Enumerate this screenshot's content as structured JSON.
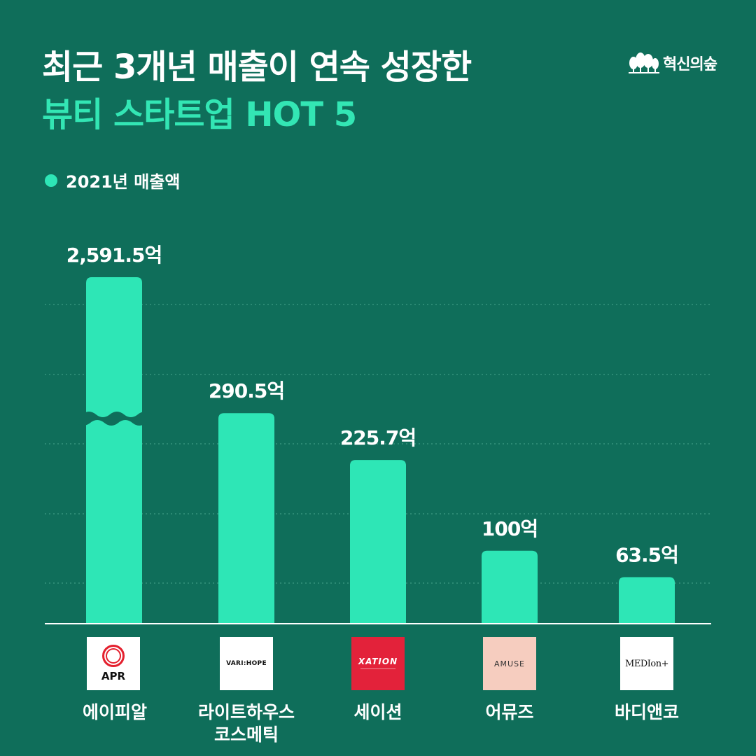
{
  "header": {
    "title_line1": "최근 3개년 매출이 연속 성장한",
    "title_line2": "뷰티 스타트업 HOT 5"
  },
  "brand": {
    "name": "혁신의숲",
    "icon": "tree-icon"
  },
  "legend": {
    "label": "2021년 매출액",
    "color": "#2ee6b6"
  },
  "colors": {
    "background": "#0f6e5a",
    "bar": "#2ee6b6",
    "highlight_title": "#33e6b4"
  },
  "chart_data": {
    "type": "bar",
    "unit": "억",
    "categories": [
      "에이피알",
      "라이트하우스 코스메틱",
      "세이션",
      "어뮤즈",
      "바디앤코"
    ],
    "values": [
      2591.5,
      290.5,
      225.7,
      100,
      63.5
    ],
    "value_labels": [
      "2,591.5억",
      "290.5억",
      "225.7억",
      "100억",
      "63.5억"
    ],
    "series": [
      {
        "name": "2021년 매출액",
        "values": [
          2591.5,
          290.5,
          225.7,
          100,
          63.5
        ]
      }
    ],
    "axis_break": {
      "category_index": 0
    },
    "grid": true,
    "title": "최근 3개년 매출이 연속 성장한 뷰티 스타트업 HOT 5",
    "xlabel": "",
    "ylabel": ""
  },
  "logos": [
    {
      "name": "apr-logo",
      "text": "APR",
      "bg": "#ffffff"
    },
    {
      "name": "varihope-logo",
      "text": "VARI:HOPE",
      "bg": "#ffffff"
    },
    {
      "name": "xation-logo",
      "text": "XATION",
      "bg": "#e3223a"
    },
    {
      "name": "amuse-logo",
      "text": "AMUSE",
      "bg": "#f6cdbf"
    },
    {
      "name": "medion-logo",
      "text": "MEDIon+",
      "bg": "#ffffff"
    }
  ],
  "labels": {
    "c0": "에이피알",
    "c1_line1": "라이트하우스",
    "c1_line2": "코스메틱",
    "c2": "세이션",
    "c3": "어뮤즈",
    "c4": "바디앤코"
  }
}
